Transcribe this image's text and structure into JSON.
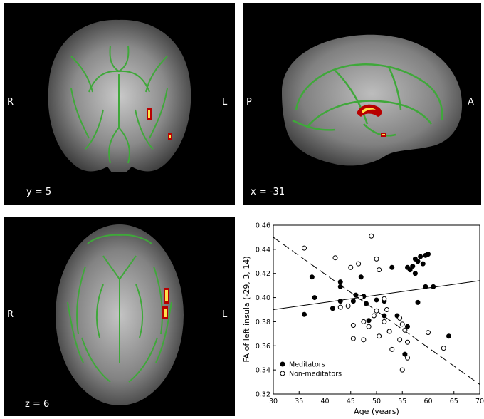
{
  "panels": {
    "coronal": {
      "left": "R",
      "right": "L",
      "coord": "y = 5"
    },
    "sagittal": {
      "left": "P",
      "right": "A",
      "coord": "x = -31"
    },
    "axial": {
      "left": "R",
      "right": "L",
      "coord": "z = 6"
    }
  },
  "colors": {
    "tract": "#3fa83a",
    "cluster_edge": "#b80000",
    "cluster_core": "#ffe34a",
    "brain_gray": "#5a5a5a"
  },
  "chart_data": {
    "type": "scatter",
    "xlabel": "Age (years)",
    "ylabel": "FA of left insula (-29, 3, 14)",
    "xlim": [
      30,
      70
    ],
    "ylim": [
      0.32,
      0.46
    ],
    "xticks": [
      "30",
      "35",
      "40",
      "45",
      "50",
      "55",
      "60",
      "65",
      "70"
    ],
    "yticks": [
      "0.32",
      "0.34",
      "0.36",
      "0.38",
      "0.40",
      "0.42",
      "0.44",
      "0.46"
    ],
    "legend_position": "bottom-left",
    "series": [
      {
        "name": "Meditators",
        "marker": "filled-circle",
        "fit": {
          "style": "solid",
          "points": [
            [
              30,
              0.39
            ],
            [
              70,
              0.414
            ]
          ]
        },
        "points": [
          [
            36,
            0.386
          ],
          [
            37.5,
            0.417
          ],
          [
            38,
            0.4
          ],
          [
            41.5,
            0.391
          ],
          [
            43,
            0.413
          ],
          [
            43,
            0.409
          ],
          [
            43,
            0.397
          ],
          [
            45.5,
            0.397
          ],
          [
            46,
            0.402
          ],
          [
            47,
            0.417
          ],
          [
            47.5,
            0.401
          ],
          [
            48,
            0.395
          ],
          [
            48.5,
            0.381
          ],
          [
            50,
            0.398
          ],
          [
            51.5,
            0.385
          ],
          [
            51.5,
            0.397
          ],
          [
            52.5,
            0.372
          ],
          [
            53,
            0.425
          ],
          [
            54,
            0.385
          ],
          [
            55.5,
            0.353
          ],
          [
            56,
            0.425
          ],
          [
            56.5,
            0.423
          ],
          [
            57,
            0.426
          ],
          [
            57.5,
            0.432
          ],
          [
            57.5,
            0.42
          ],
          [
            58,
            0.43
          ],
          [
            58,
            0.396
          ],
          [
            58.5,
            0.434
          ],
          [
            59,
            0.428
          ],
          [
            59.5,
            0.435
          ],
          [
            60,
            0.436
          ],
          [
            59.5,
            0.409
          ],
          [
            61,
            0.409
          ],
          [
            64,
            0.368
          ],
          [
            56,
            0.376
          ]
        ]
      },
      {
        "name": "Non-meditators",
        "marker": "open-circle",
        "fit": {
          "style": "dashed",
          "points": [
            [
              30,
              0.45
            ],
            [
              70,
              0.328
            ]
          ]
        },
        "points": [
          [
            36,
            0.441
          ],
          [
            42,
            0.433
          ],
          [
            43,
            0.392
          ],
          [
            44.5,
            0.393
          ],
          [
            45,
            0.425
          ],
          [
            45.5,
            0.377
          ],
          [
            45.5,
            0.366
          ],
          [
            46.5,
            0.428
          ],
          [
            47,
            0.4
          ],
          [
            47.5,
            0.38
          ],
          [
            47.5,
            0.365
          ],
          [
            48.5,
            0.376
          ],
          [
            49,
            0.451
          ],
          [
            49.5,
            0.385
          ],
          [
            50,
            0.432
          ],
          [
            50.5,
            0.423
          ],
          [
            50,
            0.389
          ],
          [
            50.5,
            0.368
          ],
          [
            51.5,
            0.399
          ],
          [
            51.5,
            0.38
          ],
          [
            52,
            0.39
          ],
          [
            52.5,
            0.372
          ],
          [
            53,
            0.357
          ],
          [
            54.5,
            0.383
          ],
          [
            55,
            0.378
          ],
          [
            55,
            0.34
          ],
          [
            56,
            0.363
          ],
          [
            56,
            0.35
          ],
          [
            60,
            0.371
          ],
          [
            63,
            0.358
          ],
          [
            54.5,
            0.365
          ],
          [
            55.5,
            0.373
          ]
        ]
      }
    ]
  }
}
